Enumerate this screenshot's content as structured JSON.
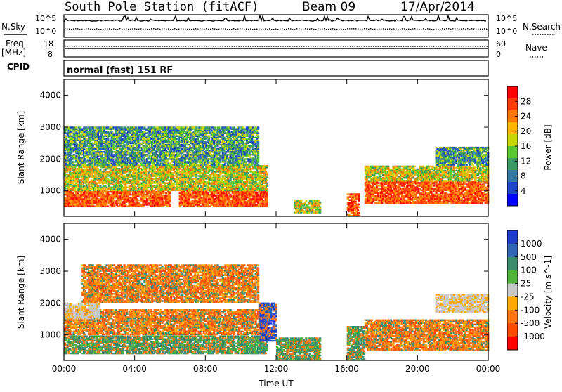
{
  "header": {
    "station": "South Pole Station (fitACF)",
    "beam": "Beam 09",
    "date": "17/Apr/2014"
  },
  "top_panels": {
    "nsky_label": "N.Sky",
    "nsearch_label": "N.Search",
    "nsky_ticks": [
      "10^5",
      "10^0"
    ],
    "nsearch_ticks": [
      "10^5",
      "10^0"
    ],
    "freq_label_line1": "Freq.",
    "freq_label_line2": "[MHz]",
    "freq_ticks": [
      "18",
      "8"
    ],
    "nave_label": "Nave",
    "nave_ticks": [
      "60",
      "0"
    ],
    "cpid_label": "CPID",
    "cpid_text": "normal (fast) 151 RF"
  },
  "chart_data": [
    {
      "type": "heatmap",
      "title": "",
      "xlabel": "Time UT",
      "ylabel": "Slant Range [km]",
      "xlim": [
        "00:00",
        "24:00"
      ],
      "ylim": [
        200,
        4500
      ],
      "x_ticks": [
        "00:00",
        "04:00",
        "08:00",
        "12:00",
        "16:00",
        "20:00",
        "00:00"
      ],
      "y_ticks": [
        "1000",
        "2000",
        "3000",
        "4000"
      ],
      "colorbar": {
        "label": "Power [dB]",
        "ticks": [
          "28",
          "24",
          "20",
          "16",
          "12",
          "8",
          "4"
        ],
        "colors": [
          "#ff0000",
          "#ff3c00",
          "#ff7800",
          "#ffb400",
          "#c8d600",
          "#5ac832",
          "#3c9a64",
          "#3278a0",
          "#1e46c8",
          "#0000ff"
        ]
      },
      "bands": [
        {
          "t_start": 0,
          "t_end": 6,
          "r_min": 500,
          "r_max": 1000,
          "level": "high"
        },
        {
          "t_start": 6.5,
          "t_end": 11.5,
          "r_min": 500,
          "r_max": 1100,
          "level": "high"
        },
        {
          "t_start": 0,
          "t_end": 11.5,
          "r_min": 1000,
          "r_max": 1800,
          "level": "medium"
        },
        {
          "t_start": 0,
          "t_end": 11,
          "r_min": 1800,
          "r_max": 3000,
          "level": "low"
        },
        {
          "t_start": 13,
          "t_end": 14.5,
          "r_min": 300,
          "r_max": 700,
          "level": "medium"
        },
        {
          "t_start": 16,
          "t_end": 16.7,
          "r_min": 200,
          "r_max": 900,
          "level": "high"
        },
        {
          "t_start": 17,
          "t_end": 24,
          "r_min": 600,
          "r_max": 1300,
          "level": "high"
        },
        {
          "t_start": 17,
          "t_end": 24,
          "r_min": 1300,
          "r_max": 1800,
          "level": "medium"
        },
        {
          "t_start": 21,
          "t_end": 24,
          "r_min": 1800,
          "r_max": 2400,
          "level": "low"
        }
      ]
    },
    {
      "type": "heatmap",
      "title": "",
      "xlabel": "Time UT",
      "ylabel": "Slant Range [km]",
      "xlim": [
        "00:00",
        "24:00"
      ],
      "ylim": [
        200,
        4500
      ],
      "x_ticks": [
        "00:00",
        "04:00",
        "08:00",
        "12:00",
        "16:00",
        "20:00",
        "00:00"
      ],
      "y_ticks": [
        "1000",
        "2000",
        "3000",
        "4000"
      ],
      "colorbar": {
        "label": "Velocity [m s^-1]",
        "ticks": [
          "1000",
          "500",
          "100",
          "25",
          "-25",
          "-100",
          "-500",
          "-1000"
        ],
        "colors": [
          "#1e3cc8",
          "#3264b4",
          "#3c8c6e",
          "#50b43c",
          "#c8c8c8",
          "#ffaa00",
          "#ff7814",
          "#ff4b00",
          "#ff0000"
        ]
      },
      "bands": [
        {
          "t_start": 0,
          "t_end": 11.5,
          "r_min": 400,
          "r_max": 1000,
          "level": "green"
        },
        {
          "t_start": 0,
          "t_end": 11.5,
          "r_min": 1000,
          "r_max": 1800,
          "level": "orange"
        },
        {
          "t_start": 0,
          "t_end": 2,
          "r_min": 1500,
          "r_max": 2000,
          "level": "gray"
        },
        {
          "t_start": 1,
          "t_end": 11,
          "r_min": 2000,
          "r_max": 3200,
          "level": "orange"
        },
        {
          "t_start": 11,
          "t_end": 12,
          "r_min": 800,
          "r_max": 2000,
          "level": "blue"
        },
        {
          "t_start": 12,
          "t_end": 14.5,
          "r_min": 200,
          "r_max": 900,
          "level": "green"
        },
        {
          "t_start": 16,
          "t_end": 17,
          "r_min": 200,
          "r_max": 1300,
          "level": "green"
        },
        {
          "t_start": 17,
          "t_end": 24,
          "r_min": 500,
          "r_max": 1500,
          "level": "orange"
        },
        {
          "t_start": 21,
          "t_end": 24,
          "r_min": 1700,
          "r_max": 2300,
          "level": "gray"
        }
      ]
    }
  ]
}
